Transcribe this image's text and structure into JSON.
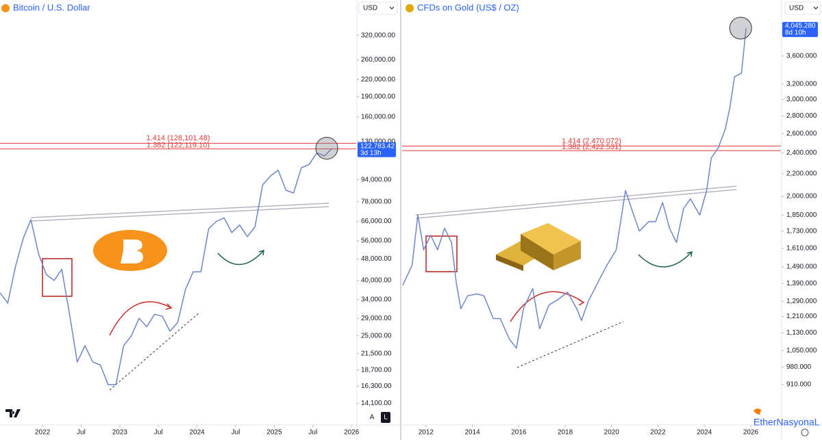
{
  "chart_data": [
    {
      "type": "line",
      "title": "Bitcoin / U.S. Dollar",
      "currency": "USD",
      "color": "#6f84c8",
      "log_scale": true,
      "x": [
        2021.45,
        2021.55,
        2021.65,
        2021.75,
        2021.85,
        2021.95,
        2022.05,
        2022.15,
        2022.25,
        2022.35,
        2022.45,
        2022.55,
        2022.65,
        2022.75,
        2022.85,
        2022.95,
        2023.05,
        2023.15,
        2023.25,
        2023.35,
        2023.45,
        2023.55,
        2023.65,
        2023.75,
        2023.85,
        2023.95,
        2024.05,
        2024.15,
        2024.25,
        2024.35,
        2024.45,
        2024.55,
        2024.65,
        2024.75,
        2024.85,
        2024.95,
        2025.05,
        2025.15,
        2025.25,
        2025.35,
        2025.45,
        2025.55,
        2025.65,
        2025.75
      ],
      "values": [
        36000,
        33000,
        45000,
        57000,
        67000,
        50000,
        42000,
        40000,
        44000,
        30000,
        20000,
        23000,
        20000,
        19500,
        16500,
        16500,
        23000,
        25000,
        29000,
        27000,
        30000,
        29500,
        26000,
        28000,
        37000,
        43000,
        43000,
        62000,
        66000,
        68000,
        60000,
        64000,
        58000,
        63000,
        90000,
        97000,
        102000,
        86000,
        84000,
        104000,
        107000,
        118000,
        115000,
        122783.42
      ],
      "last_label": "122,783.42",
      "countdown": "3d 13h",
      "fib_levels": [
        {
          "value": 128101.48,
          "label": "1.414 (128,101.48)"
        },
        {
          "value": 122119.1,
          "label": "1.382 (122,119.10)"
        }
      ],
      "xlim": [
        2021.45,
        2026.06
      ],
      "xticks": [
        2022,
        {
          "value": 2022.5,
          "label": "Jul"
        },
        2023,
        {
          "value": 2023.5,
          "label": "Jul"
        },
        2024,
        {
          "value": 2024.5,
          "label": "Jul"
        },
        2025,
        {
          "value": 2025.5,
          "label": "Jul"
        },
        2026
      ],
      "ylim": [
        11800,
        432000
      ],
      "yticks": [
        {
          "value": 14100,
          "label": "14,100.00"
        },
        {
          "value": 16300,
          "label": "16,300.00"
        },
        {
          "value": 18700,
          "label": "18,700.00"
        },
        {
          "value": 21500,
          "label": "21,500.00"
        },
        {
          "value": 25000,
          "label": "25,000.00"
        },
        {
          "value": 29000,
          "label": "29,000.00"
        },
        {
          "value": 34000,
          "label": "34,000.00"
        },
        {
          "value": 40000,
          "label": "40,000.00"
        },
        {
          "value": 48000,
          "label": "48,000.00"
        },
        {
          "value": 56000,
          "label": "56,000.00"
        },
        {
          "value": 66000,
          "label": "66,000.00"
        },
        {
          "value": 78000,
          "label": "78,000.00"
        },
        {
          "value": 94000,
          "label": "94,000.00"
        },
        {
          "value": 130000,
          "label": "130,000.00"
        },
        {
          "value": 160000,
          "label": "160,000.00"
        },
        {
          "value": 190000,
          "label": "190,000.00"
        },
        {
          "value": 220000,
          "label": "220,000.00"
        },
        {
          "value": 260000,
          "label": "260,000.00"
        },
        {
          "value": 320000,
          "label": "320,000.00"
        }
      ]
    },
    {
      "type": "line",
      "title": "CFDs on Gold (US$ / OZ)",
      "currency": "USD",
      "color": "#6f84c8",
      "log_scale": true,
      "x": [
        2011.0,
        2011.4,
        2011.65,
        2011.9,
        2012.2,
        2012.5,
        2012.8,
        2013.1,
        2013.3,
        2013.5,
        2013.8,
        2014.2,
        2014.5,
        2014.9,
        2015.2,
        2015.6,
        2015.9,
        2016.2,
        2016.6,
        2016.9,
        2017.3,
        2017.7,
        2018.1,
        2018.5,
        2018.7,
        2019.0,
        2019.5,
        2019.8,
        2020.2,
        2020.6,
        2020.9,
        2021.2,
        2021.6,
        2021.9,
        2022.2,
        2022.5,
        2022.8,
        2023.1,
        2023.4,
        2023.8,
        2024.1,
        2024.3,
        2024.6,
        2024.9,
        2025.1,
        2025.3,
        2025.6,
        2025.8
      ],
      "values": [
        1380,
        1500,
        1850,
        1600,
        1700,
        1600,
        1750,
        1650,
        1400,
        1250,
        1320,
        1330,
        1320,
        1200,
        1200,
        1100,
        1060,
        1250,
        1360,
        1150,
        1270,
        1300,
        1340,
        1250,
        1190,
        1290,
        1420,
        1500,
        1600,
        2050,
        1880,
        1730,
        1800,
        1800,
        1950,
        1750,
        1650,
        1900,
        1980,
        1850,
        2050,
        2350,
        2450,
        2650,
        2900,
        3300,
        3350,
        4045.28
      ],
      "last_label": "4,045.280",
      "countdown": "8d 10h",
      "fib_levels": [
        {
          "value": 2470.072,
          "label": "1.414 (2,470.072)"
        },
        {
          "value": 2422.531,
          "label": "1.382 (2,422.531)"
        }
      ],
      "xlim": [
        2010.97,
        2027.3
      ],
      "xticks": [
        2012,
        2014,
        2016,
        2018,
        2020,
        2022,
        2024,
        2026
      ],
      "ylim": [
        771,
        4550
      ],
      "yticks": [
        {
          "value": 910,
          "label": "910.000"
        },
        {
          "value": 980,
          "label": "980.000"
        },
        {
          "value": 1050,
          "label": "1,050.000"
        },
        {
          "value": 1130,
          "label": "1,130.000"
        },
        {
          "value": 1210,
          "label": "1,210.000"
        },
        {
          "value": 1290,
          "label": "1,290.000"
        },
        {
          "value": 1390,
          "label": "1,390.000"
        },
        {
          "value": 1490,
          "label": "1,490.000"
        },
        {
          "value": 1610,
          "label": "1,610.000"
        },
        {
          "value": 1730,
          "label": "1,730.000"
        },
        {
          "value": 1850,
          "label": "1,850.000"
        },
        {
          "value": 2000,
          "label": "2,000.000"
        },
        {
          "value": 2200,
          "label": "2,200.000"
        },
        {
          "value": 2400,
          "label": "2,400.000"
        },
        {
          "value": 2600,
          "label": "2,600.000"
        },
        {
          "value": 2800,
          "label": "2,800.000"
        },
        {
          "value": 3000,
          "label": "3,000.000"
        },
        {
          "value": 3200,
          "label": "3,200.000"
        },
        {
          "value": 3600,
          "label": "3,600.000"
        }
      ]
    }
  ],
  "ui": {
    "scale_buttons": [
      "A",
      "L"
    ],
    "watermark": "EtherNasyonaL"
  }
}
